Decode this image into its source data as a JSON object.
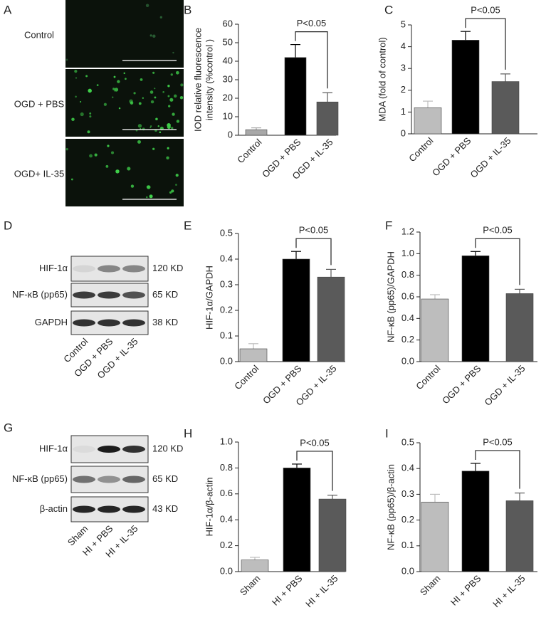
{
  "panels": {
    "A": {
      "letter": "A",
      "rows": [
        "Control",
        "OGD + PBS",
        "OGD+ IL-35"
      ]
    },
    "D": {
      "letter": "D",
      "bands": [
        {
          "protein": "HIF-1α",
          "size": "120 KD"
        },
        {
          "protein": "NF-κB (pp65)",
          "size": "65 KD"
        },
        {
          "protein": "GAPDH",
          "size": "38 KD"
        }
      ],
      "lanes": [
        "Control",
        "OGD + PBS",
        "OGD + IL-35"
      ]
    },
    "G": {
      "letter": "G",
      "bands": [
        {
          "protein": "HIF-1α",
          "size": "120 KD"
        },
        {
          "protein": "NF-κB (pp65)",
          "size": "65 KD"
        },
        {
          "protein": "β-actin",
          "size": "43 KD"
        }
      ],
      "lanes": [
        "Sham",
        "HI + PBS",
        "HI + IL-35"
      ]
    }
  },
  "chart_data": [
    {
      "letter": "B",
      "type": "bar",
      "ylabel": [
        "IOD relative fluorescence",
        "intensity (%control )"
      ],
      "categories": [
        "Control",
        "OGD + PBS",
        "OGD + IL-35"
      ],
      "values": [
        3,
        42,
        18
      ],
      "errors": [
        1,
        7,
        5
      ],
      "colors": [
        "#a8a8a8",
        "#000000",
        "#5a5a5a"
      ],
      "ylim": [
        0,
        60
      ],
      "yticks": [
        0,
        10,
        20,
        30,
        40,
        50,
        60
      ],
      "annotation": "P<0.05"
    },
    {
      "letter": "C",
      "type": "bar",
      "ylabel": [
        "MDA (fold of control)"
      ],
      "categories": [
        "Control",
        "OGD + PBS",
        "OGD + IL-35"
      ],
      "values": [
        1.2,
        4.3,
        2.4
      ],
      "errors": [
        0.3,
        0.4,
        0.35
      ],
      "colors": [
        "#bdbdbd",
        "#000000",
        "#5a5a5a"
      ],
      "ylim": [
        0,
        5
      ],
      "yticks": [
        0,
        1,
        2,
        3,
        4,
        5
      ],
      "annotation": "P<0.05"
    },
    {
      "letter": "E",
      "type": "bar",
      "ylabel": [
        "HIF-1α/GAPDH"
      ],
      "categories": [
        "Control",
        "OGD + PBS",
        "OGD + IL-35"
      ],
      "values": [
        0.05,
        0.4,
        0.33
      ],
      "errors": [
        0.02,
        0.03,
        0.03
      ],
      "colors": [
        "#bdbdbd",
        "#000000",
        "#5a5a5a"
      ],
      "ylim": [
        0,
        0.5
      ],
      "yticks": [
        {
          "value": 0,
          "label": "0.0"
        },
        0.1,
        0.2,
        0.3,
        0.4,
        0.5
      ],
      "annotation": "P<0.05"
    },
    {
      "letter": "F",
      "type": "bar",
      "ylabel": [
        "NF-κB (pp65)/GAPDH"
      ],
      "categories": [
        "Control",
        "OGD + PBS",
        "OGD + IL-35"
      ],
      "values": [
        0.58,
        0.98,
        0.63
      ],
      "errors": [
        0.04,
        0.04,
        0.04
      ],
      "colors": [
        "#bdbdbd",
        "#000000",
        "#5a5a5a"
      ],
      "ylim": [
        0,
        1.2
      ],
      "yticks": [
        {
          "value": 0,
          "label": "0.0"
        },
        0.2,
        0.4,
        0.6,
        0.8,
        {
          "value": 1,
          "label": "1.0"
        },
        1.2
      ],
      "annotation": "P<0.05"
    },
    {
      "letter": "H",
      "type": "bar",
      "ylabel": [
        "HIF-1α/β-actin"
      ],
      "categories": [
        "Sham",
        "HI + PBS",
        "HI + IL-35"
      ],
      "values": [
        0.09,
        0.8,
        0.56
      ],
      "errors": [
        0.02,
        0.03,
        0.03
      ],
      "colors": [
        "#bdbdbd",
        "#000000",
        "#5a5a5a"
      ],
      "ylim": [
        0,
        1
      ],
      "yticks": [
        {
          "value": 0,
          "label": "0.0"
        },
        0.2,
        0.4,
        0.6,
        0.8,
        {
          "value": 1,
          "label": "1.0"
        }
      ],
      "annotation": "P<0.05"
    },
    {
      "letter": "I",
      "type": "bar",
      "ylabel": [
        "NF-κB (pp65)/β-actin"
      ],
      "categories": [
        "Sham",
        "HI + PBS",
        "HI + IL-35"
      ],
      "values": [
        0.27,
        0.39,
        0.275
      ],
      "errors": [
        0.03,
        0.03,
        0.03
      ],
      "colors": [
        "#bdbdbd",
        "#000000",
        "#5a5a5a"
      ],
      "ylim": [
        0,
        0.5
      ],
      "yticks": [
        {
          "value": 0,
          "label": "0.0"
        },
        0.1,
        0.2,
        0.3,
        0.4,
        0.5
      ],
      "annotation": "P<0.05"
    }
  ]
}
